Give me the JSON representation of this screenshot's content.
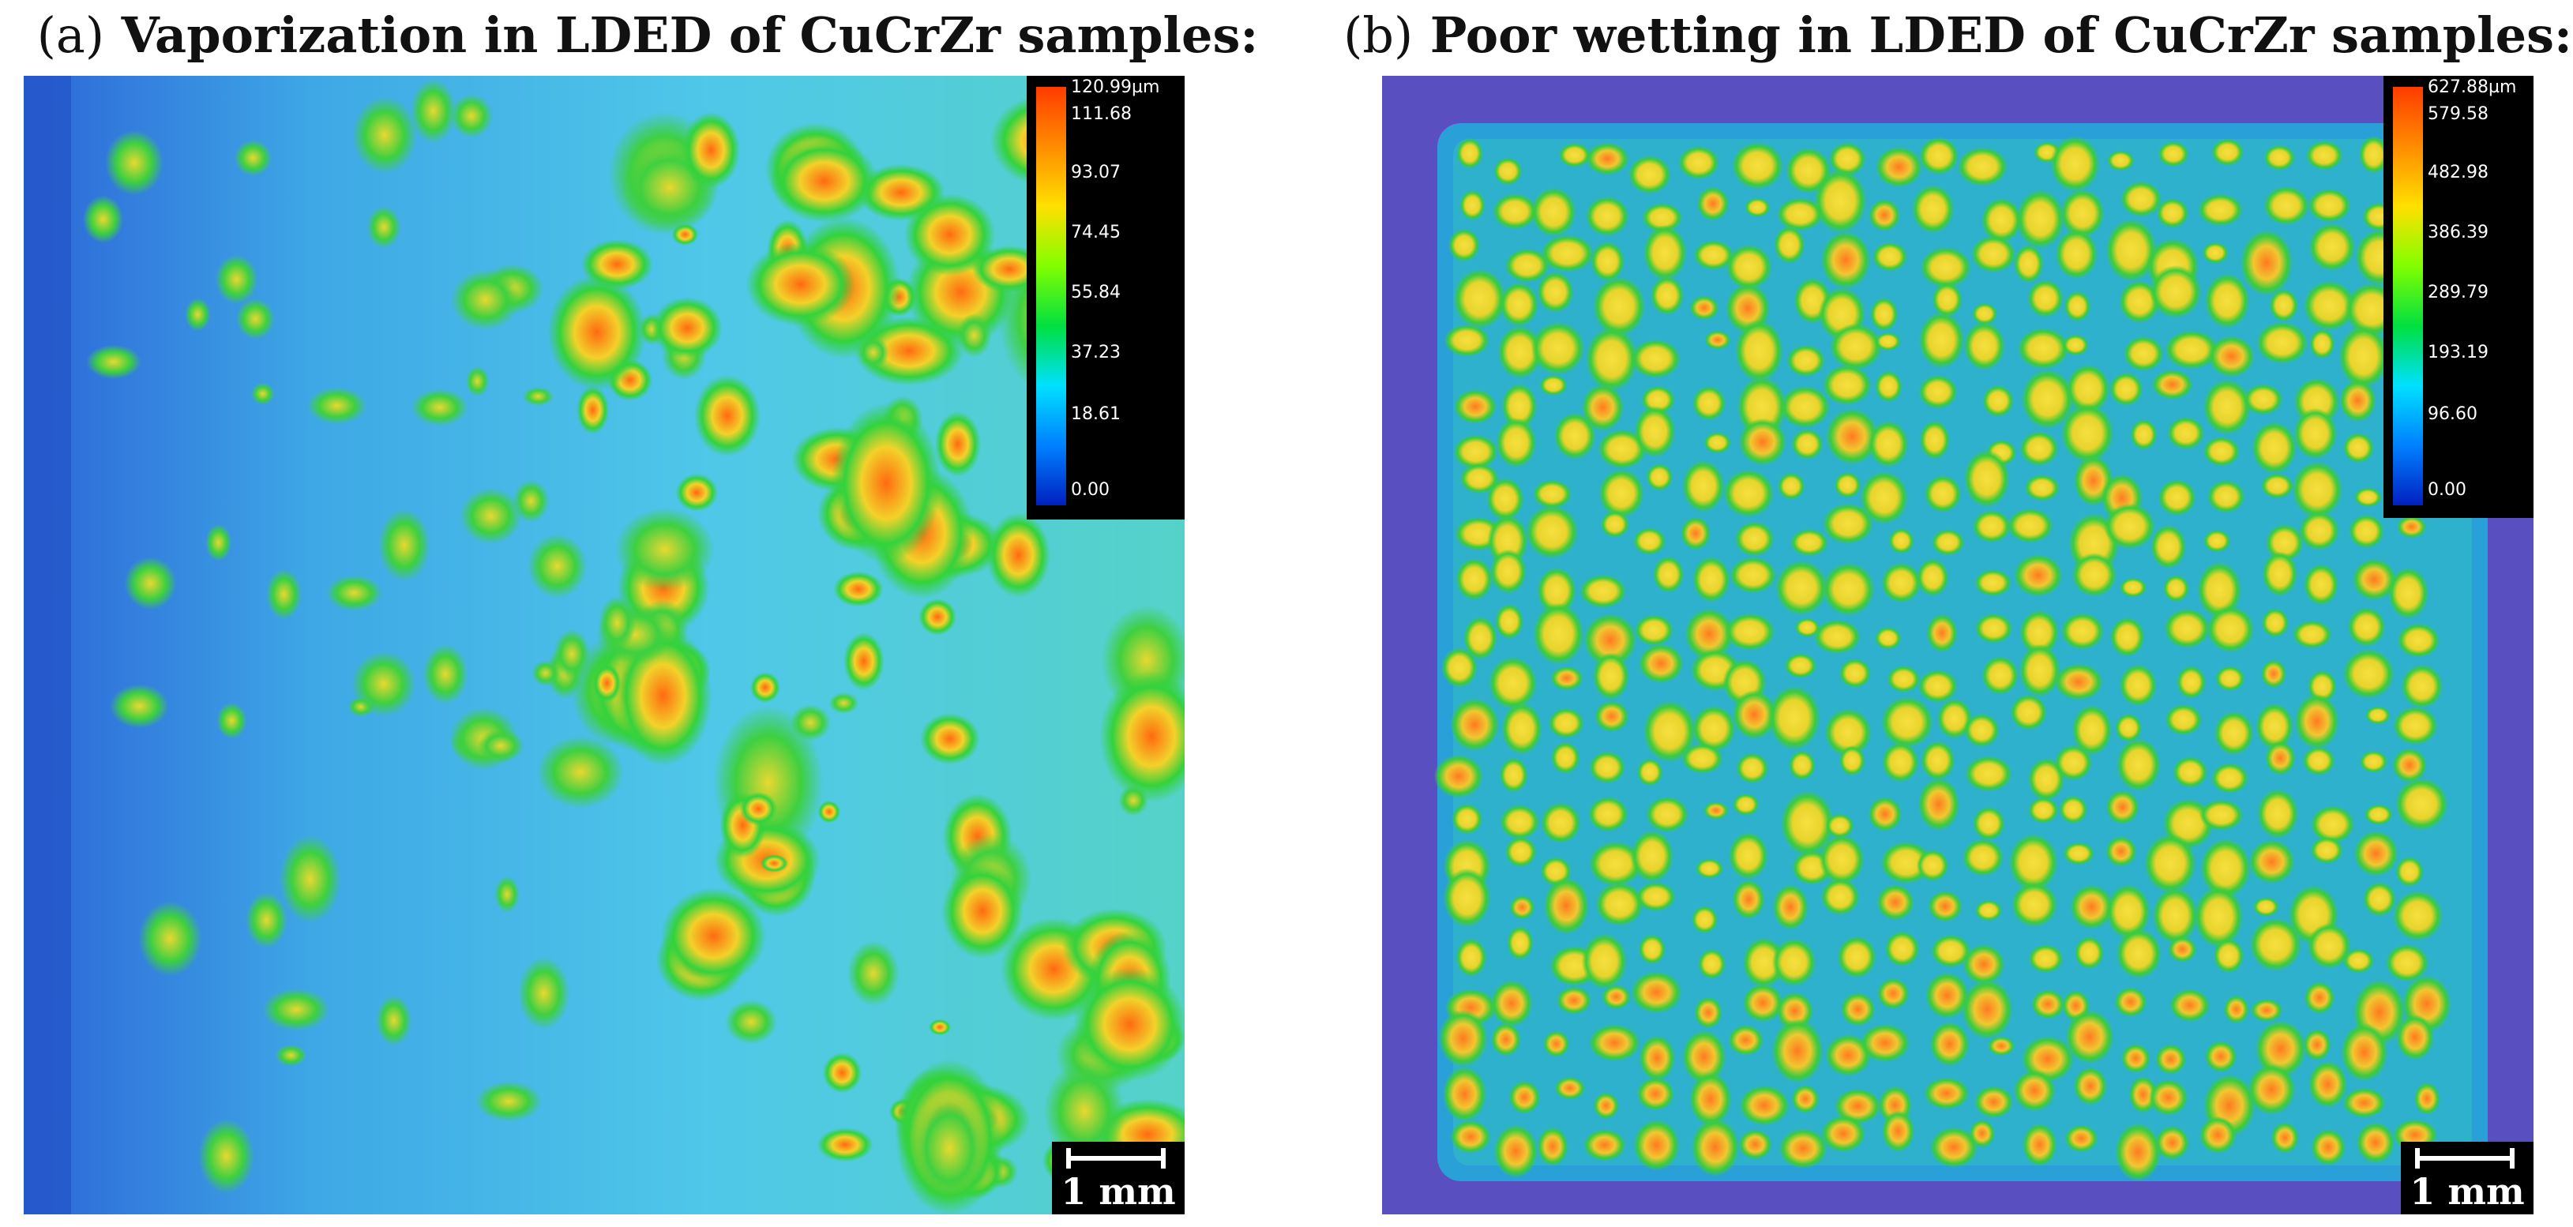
{
  "panel_a": {
    "letter": "(a)",
    "title": "Vaporization in LDED of CuCrZr samples:",
    "legend_ticks": [
      "120.99µm",
      "111.68",
      "93.07",
      "74.45",
      "55.84",
      "37.23",
      "18.61",
      "0.00"
    ],
    "scale_label": "1 mm"
  },
  "panel_b": {
    "letter": "(b)",
    "title": "Poor wetting in LDED of CuCrZr samples:",
    "legend_ticks": [
      "627.88µm",
      "579.58",
      "482.98",
      "386.39",
      "289.79",
      "193.19",
      "96.60",
      "0.00"
    ],
    "scale_label": "1 mm"
  },
  "colors": {
    "low": "#1a3fc8",
    "mid_low": "#2fb8e8",
    "mid": "#22d24a",
    "mid_high": "#f0e030",
    "high": "#ff5a10",
    "background_b": "#5a4fc0"
  }
}
